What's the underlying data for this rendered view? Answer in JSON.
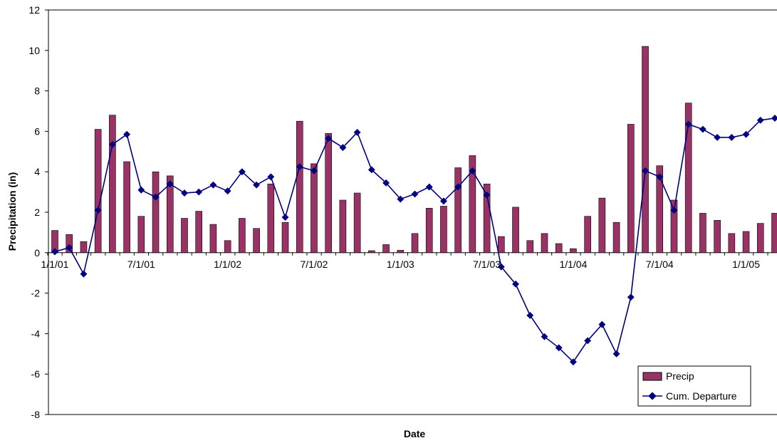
{
  "chart_data": {
    "type": "bar",
    "title": "",
    "xlabel": "Date",
    "ylabel": "Precipitation (in)",
    "ylim": [
      -8,
      12
    ],
    "yticks": [
      "-8",
      "-6",
      "-4",
      "-2",
      "0",
      "2",
      "4",
      "6",
      "8",
      "10",
      "12"
    ],
    "xticks": [
      {
        "label": "1/1/01",
        "month": 0
      },
      {
        "label": "7/1/01",
        "month": 6
      },
      {
        "label": "1/1/02",
        "month": 12
      },
      {
        "label": "7/1/02",
        "month": 18
      },
      {
        "label": "1/1/03",
        "month": 24
      },
      {
        "label": "7/1/03",
        "month": 30
      },
      {
        "label": "1/1/04",
        "month": 36
      },
      {
        "label": "7/1/04",
        "month": 42
      },
      {
        "label": "1/1/05",
        "month": 48
      }
    ],
    "x_start": "2001-01",
    "x_interval": "monthly",
    "grid": false,
    "legend_position": "bottom-right",
    "series": [
      {
        "name": "Precip",
        "type": "bar",
        "color": "#993366",
        "values": [
          1.1,
          0.9,
          0.55,
          6.1,
          6.8,
          4.5,
          1.8,
          4.0,
          3.8,
          1.7,
          2.05,
          1.4,
          0.6,
          1.7,
          1.2,
          3.4,
          1.5,
          6.5,
          4.4,
          5.9,
          2.6,
          2.95,
          0.1,
          0.4,
          0.12,
          0.95,
          2.2,
          2.3,
          4.2,
          4.8,
          3.4,
          0.8,
          2.25,
          0.6,
          0.95,
          0.45,
          0.2,
          1.8,
          2.7,
          1.5,
          6.35,
          10.2,
          4.3,
          2.6,
          7.4,
          1.95,
          1.6,
          0.95,
          1.05,
          1.45,
          1.95
        ]
      },
      {
        "name": "Cum. Departure",
        "type": "line",
        "color": "#000080",
        "values": [
          0.05,
          0.25,
          -1.05,
          2.1,
          5.35,
          5.85,
          3.1,
          2.75,
          3.4,
          2.95,
          3.0,
          3.35,
          3.05,
          4.0,
          3.35,
          3.75,
          1.75,
          4.25,
          4.05,
          5.65,
          5.2,
          5.95,
          4.1,
          3.45,
          2.65,
          2.9,
          3.25,
          2.55,
          3.25,
          4.05,
          2.85,
          -0.7,
          -1.55,
          -3.1,
          -4.15,
          -4.7,
          -5.4,
          -4.35,
          -3.55,
          -5.0,
          -2.2,
          4.05,
          3.75,
          2.1,
          6.35,
          6.1,
          5.7,
          5.7,
          5.85,
          6.55,
          6.65
        ]
      }
    ]
  }
}
